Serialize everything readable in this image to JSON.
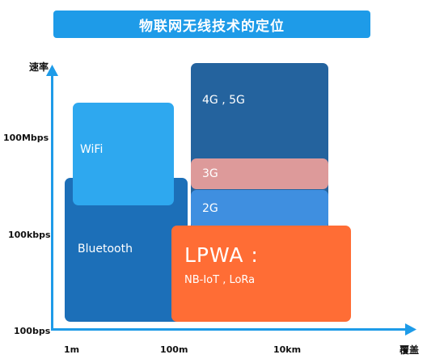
{
  "title": "物联网无线技术的定位",
  "y_axis_label": "速率",
  "x_axis_label": "覆盖",
  "y_ticks": [
    "100Mbps",
    "100kbps",
    "100bps"
  ],
  "x_ticks": [
    "1m",
    "100m",
    "10km"
  ],
  "blocks": {
    "bluetooth": "Bluetooth",
    "wifi": "WiFi",
    "g45": "4G , 5G",
    "g3": "3G",
    "g2": "2G",
    "lpwa_title": "LPWA :",
    "lpwa_sub": "NB-IoT , LoRa"
  },
  "colors": {
    "axis": "#1e9be8",
    "bluetooth": "#1c6fb8",
    "wifi": "#2ea8ef",
    "g45": "#24639e",
    "g3": "#dd9a9a",
    "g2": "#3f8fe0",
    "lpwa": "#ff6d35"
  }
}
